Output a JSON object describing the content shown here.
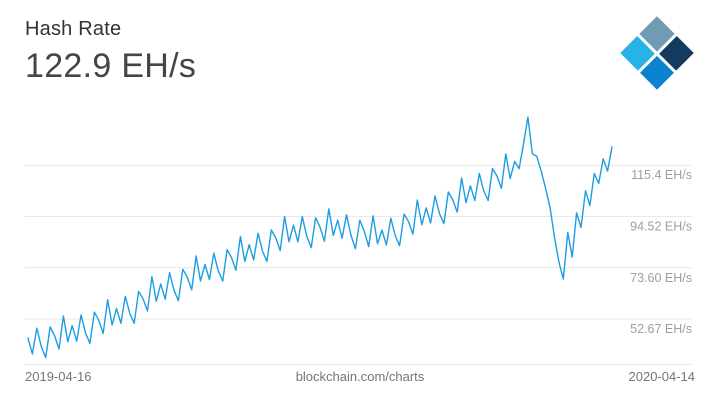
{
  "header": {
    "title": "Hash Rate",
    "value": "122.9 EH/s"
  },
  "logo": {
    "name": "blockchain-logo",
    "colors": [
      "#6f9bb3",
      "#153a60",
      "#29b2e6",
      "#0d82d1"
    ]
  },
  "footer": {
    "start_date": "2019-04-16",
    "source": "blockchain.com/charts",
    "end_date": "2020-04-14"
  },
  "chart_data": {
    "type": "line",
    "title": "Hash Rate",
    "current_value": "122.9 EH/s",
    "unit": "EH/s",
    "x_start": "2019-04-16",
    "x_end": "2020-04-14",
    "ylim": [
      34,
      144
    ],
    "grid": true,
    "legend_position": "none",
    "line_color": "#1e9de0",
    "gridline_color": "#e9e9e9",
    "y_gridlines": [
      {
        "value": 115.4,
        "label": "115.4 EH/s"
      },
      {
        "value": 94.52,
        "label": "94.52 EH/s"
      },
      {
        "value": 73.6,
        "label": "73.60 EH/s"
      },
      {
        "value": 52.67,
        "label": "52.67 EH/s"
      }
    ],
    "values": [
      45,
      38.5,
      49,
      41.5,
      37,
      49.5,
      46,
      40.5,
      54,
      43.5,
      50,
      43.7,
      54.4,
      47.1,
      42.8,
      55.5,
      52.2,
      46.9,
      60.6,
      50.3,
      57,
      51,
      62,
      55,
      51,
      64,
      61,
      56,
      70,
      60,
      67,
      60.8,
      71.6,
      64.4,
      60.2,
      73,
      69.8,
      64.6,
      78.4,
      68.2,
      75,
      68.8,
      79.6,
      72.4,
      68.2,
      81,
      77.8,
      72.6,
      86.4,
      76.2,
      83,
      76.8,
      87.6,
      80.4,
      76.2,
      89,
      85.8,
      80.6,
      94.4,
      84.2,
      91,
      84.2,
      94.4,
      86.6,
      81.8,
      94,
      90.2,
      84.4,
      97.6,
      86.8,
      93,
      85.6,
      95.2,
      86.8,
      81.4,
      93,
      88.6,
      82.2,
      94.8,
      83.4,
      89,
      82.9,
      93.8,
      86.7,
      82.6,
      95.5,
      92.4,
      87.3,
      101.2,
      91.1,
      98,
      91.9,
      102.8,
      95.7,
      91.6,
      104.5,
      101.4,
      96.3,
      110.2,
      100.1,
      107,
      101,
      112,
      105,
      101,
      114,
      111,
      106,
      120,
      110,
      117,
      114,
      124,
      135,
      120,
      119,
      113,
      106,
      98,
      86,
      76,
      69,
      88,
      78,
      96,
      90,
      105,
      99,
      112,
      108,
      118,
      113,
      122.9
    ]
  }
}
